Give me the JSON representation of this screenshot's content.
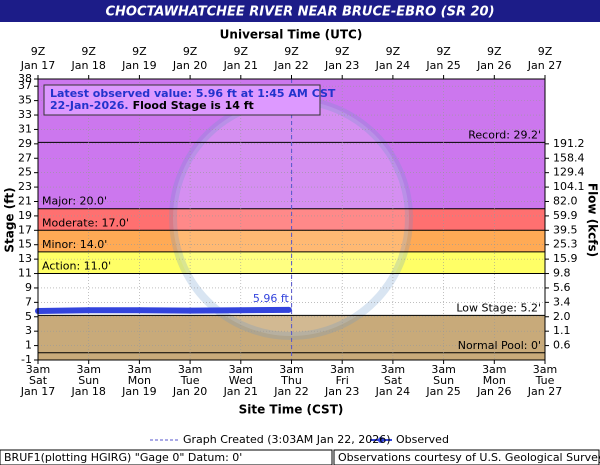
{
  "chart_data": {
    "type": "hydrograph",
    "title": "CHOCTAWHATCHEE RIVER NEAR BRUCE-EBRO (SR 20)",
    "top_axis_title": "Universal Time (UTC)",
    "x_axis_title": "Site Time (CST)",
    "y_axis_title": "Stage (ft)",
    "y2_axis_title": "Flow (kcfs)",
    "ylim": [
      -1,
      38
    ],
    "yticks": [
      -1,
      1,
      3,
      5,
      7,
      9,
      11,
      13,
      15,
      17,
      19,
      21,
      23,
      25,
      27,
      29,
      31,
      33,
      35,
      37,
      38
    ],
    "y2ticks": [
      {
        "value": 191.2,
        "stage": 29
      },
      {
        "value": 158.4,
        "stage": 27
      },
      {
        "value": 129.4,
        "stage": 25
      },
      {
        "value": 104.1,
        "stage": 23
      },
      {
        "value": 82.0,
        "label": "82.0",
        "stage": 21
      },
      {
        "value": 59.9,
        "stage": 19
      },
      {
        "value": 39.5,
        "stage": 17
      },
      {
        "value": 25.3,
        "stage": 15
      },
      {
        "value": 15.9,
        "stage": 13
      },
      {
        "value": 9.8,
        "stage": 11
      },
      {
        "value": 5.6,
        "stage": 9
      },
      {
        "value": 3.4,
        "stage": 7
      },
      {
        "value": 2.0,
        "label": "2.0",
        "stage": 5
      },
      {
        "value": 1.1,
        "stage": 3
      },
      {
        "value": 0.6,
        "stage": 1
      }
    ],
    "xlim": [
      "Jan 17 3am",
      "Jan 27 3am"
    ],
    "xticks": [
      {
        "time": "3am",
        "weekday": "Sat",
        "date": "Jan 17"
      },
      {
        "time": "3am",
        "weekday": "Sun",
        "date": "Jan 18"
      },
      {
        "time": "3am",
        "weekday": "Mon",
        "date": "Jan 19"
      },
      {
        "time": "3am",
        "weekday": "Tue",
        "date": "Jan 20"
      },
      {
        "time": "3am",
        "weekday": "Wed",
        "date": "Jan 21"
      },
      {
        "time": "3am",
        "weekday": "Thu",
        "date": "Jan 22"
      },
      {
        "time": "3am",
        "weekday": "Fri",
        "date": "Jan 23"
      },
      {
        "time": "3am",
        "weekday": "Sat",
        "date": "Jan 24"
      },
      {
        "time": "3am",
        "weekday": "Sun",
        "date": "Jan 25"
      },
      {
        "time": "3am",
        "weekday": "Mon",
        "date": "Jan 26"
      },
      {
        "time": "3am",
        "weekday": "Tue",
        "date": "Jan 27"
      }
    ],
    "top_xticks": [
      {
        "time": "9Z",
        "date": "Jan 17"
      },
      {
        "time": "9Z",
        "date": "Jan 18"
      },
      {
        "time": "9Z",
        "date": "Jan 19"
      },
      {
        "time": "9Z",
        "date": "Jan 20"
      },
      {
        "time": "9Z",
        "date": "Jan 21"
      },
      {
        "time": "9Z",
        "date": "Jan 22"
      },
      {
        "time": "9Z",
        "date": "Jan 23"
      },
      {
        "time": "9Z",
        "date": "Jan 24"
      },
      {
        "time": "9Z",
        "date": "Jan 25"
      },
      {
        "time": "9Z",
        "date": "Jan 26"
      },
      {
        "time": "9Z",
        "date": "Jan 27"
      }
    ],
    "grid": true,
    "plot_background": "#cc77ee",
    "thresholds": [
      {
        "label": "Record: 29.2'",
        "value": 29.2,
        "fill": "#cc77ee",
        "align": "right"
      },
      {
        "label": "Major: 20.0'",
        "value": 20.0,
        "fill": "#ff7070",
        "align": "left"
      },
      {
        "label": "Moderate: 17.0'",
        "value": 17.0,
        "fill": "#ffaa55",
        "align": "left"
      },
      {
        "label": "Minor: 14.0'",
        "value": 14.0,
        "fill": "#ffff66",
        "align": "left"
      },
      {
        "label": "Action: 11.0'",
        "value": 11.0,
        "fill": "#ffffff",
        "align": "left"
      },
      {
        "label": "Low Stage: 5.2'",
        "value": 5.2,
        "fill": "#c8aa7a",
        "align": "right"
      },
      {
        "label": "Normal Pool: 0'",
        "value": 0,
        "fill": "#c8aa7a",
        "align": "right"
      }
    ],
    "series": [
      {
        "name": "Observed",
        "color": "#3344dd",
        "x": [
          "Jan 17 3am",
          "Jan 18 3am",
          "Jan 19 3am",
          "Jan 20 3am",
          "Jan 21 3am",
          "Jan 22 1:45am"
        ],
        "values": [
          5.8,
          5.9,
          5.9,
          5.85,
          5.9,
          5.96
        ],
        "value_labels": [
          null,
          null,
          null,
          null,
          null,
          "5.96 ft"
        ]
      }
    ],
    "created": {
      "label": "Graph Created (3:03AM Jan 22, 2026)",
      "x": "Jan 22 3:03am",
      "color": "#5555cc"
    },
    "annotation": {
      "line1": "Latest observed value: 5.96 ft at 1:45 AM CST",
      "line2a": "22-Jan-2026.",
      "line2b": "Flood Stage is 14 ft"
    },
    "footer_left": "BRUF1(plotting HGIRG) \"Gage 0\" Datum: 0'",
    "footer_right": "Observations courtesy of U.S. Geological Survey"
  }
}
